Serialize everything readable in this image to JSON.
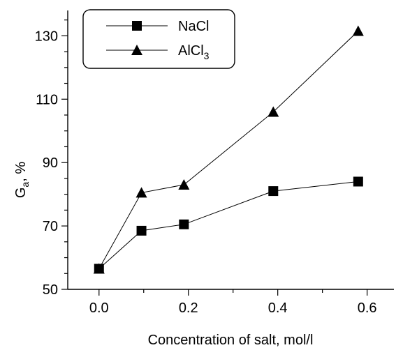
{
  "chart_data": {
    "type": "line",
    "title": "",
    "xlabel": "Concentration of salt, mol/l",
    "ylabel_main": "G",
    "ylabel_sub": "a",
    "ylabel_rest": ", %",
    "xlim": [
      -0.07,
      0.66
    ],
    "ylim": [
      50,
      138
    ],
    "xticks": [
      0.0,
      0.2,
      0.4,
      0.6
    ],
    "xtick_labels": [
      "0.0",
      "0.2",
      "0.4",
      "0.6"
    ],
    "yticks": [
      50,
      70,
      90,
      110,
      130
    ],
    "ytick_labels": [
      "50",
      "70",
      "90",
      "110",
      "130"
    ],
    "grid": false,
    "legend_position": "top-left",
    "series": [
      {
        "name": "NaCl",
        "marker": "square",
        "x": [
          0.0,
          0.095,
          0.19,
          0.39,
          0.58
        ],
        "y": [
          56.5,
          68.5,
          70.5,
          81,
          84
        ]
      },
      {
        "name": "AlCl",
        "name_sub": "3",
        "marker": "triangle",
        "x": [
          0.0,
          0.095,
          0.19,
          0.39,
          0.58
        ],
        "y": [
          56.5,
          80.5,
          83,
          106,
          131.5
        ]
      }
    ]
  }
}
